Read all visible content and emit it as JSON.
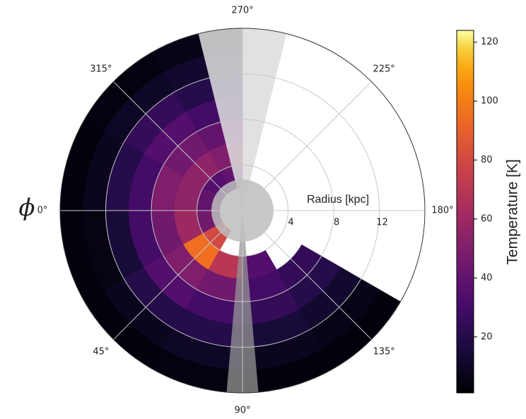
{
  "chart_data": {
    "type": "polar-heatmap",
    "theta_label": "ϕ",
    "r_label": "Radius [kpc]",
    "colorbar_label": "Temperature [K]",
    "colormap": "inferno",
    "theta_direction": "clockwise",
    "theta_zero": "left",
    "rlim": [
      0,
      16
    ],
    "rticks": [
      4,
      8,
      12
    ],
    "thetaticks": [
      {
        "value": 0,
        "label": "0°"
      },
      {
        "value": 45,
        "label": "45°"
      },
      {
        "value": 90,
        "label": "90°"
      },
      {
        "value": 135,
        "label": "135°"
      },
      {
        "value": 180,
        "label": "180°"
      },
      {
        "value": 225,
        "label": "225°"
      },
      {
        "value": 270,
        "label": "270°"
      },
      {
        "value": 315,
        "label": "315°"
      }
    ],
    "clim": [
      1,
      124
    ],
    "cticks": [
      20,
      40,
      60,
      80,
      100,
      120
    ],
    "theta_bins": [
      0,
      30,
      60,
      90,
      120,
      150,
      180,
      210,
      240,
      270,
      300,
      330,
      360
    ],
    "r_bins": [
      0,
      2,
      4,
      6,
      8,
      10,
      12,
      14,
      16
    ],
    "values": [
      [
        null,
        45,
        60,
        45,
        30,
        15,
        5,
        3
      ],
      [
        null,
        80,
        95,
        50,
        35,
        20,
        8,
        3
      ],
      [
        null,
        null,
        70,
        45,
        30,
        20,
        10,
        4
      ],
      [
        null,
        null,
        35,
        30,
        25,
        15,
        8,
        3
      ],
      [
        null,
        null,
        null,
        25,
        20,
        12,
        6,
        3
      ],
      [
        null,
        null,
        null,
        null,
        null,
        null,
        null,
        null
      ],
      [
        null,
        null,
        null,
        null,
        null,
        null,
        null,
        null
      ],
      [
        null,
        null,
        null,
        null,
        null,
        null,
        null,
        null
      ],
      [
        null,
        null,
        null,
        null,
        null,
        null,
        null,
        null
      ],
      [
        null,
        40,
        50,
        40,
        30,
        20,
        12,
        6
      ],
      [
        null,
        35,
        55,
        45,
        35,
        25,
        10,
        4
      ],
      [
        null,
        40,
        55,
        50,
        30,
        20,
        8,
        3
      ]
    ],
    "grid": true
  }
}
